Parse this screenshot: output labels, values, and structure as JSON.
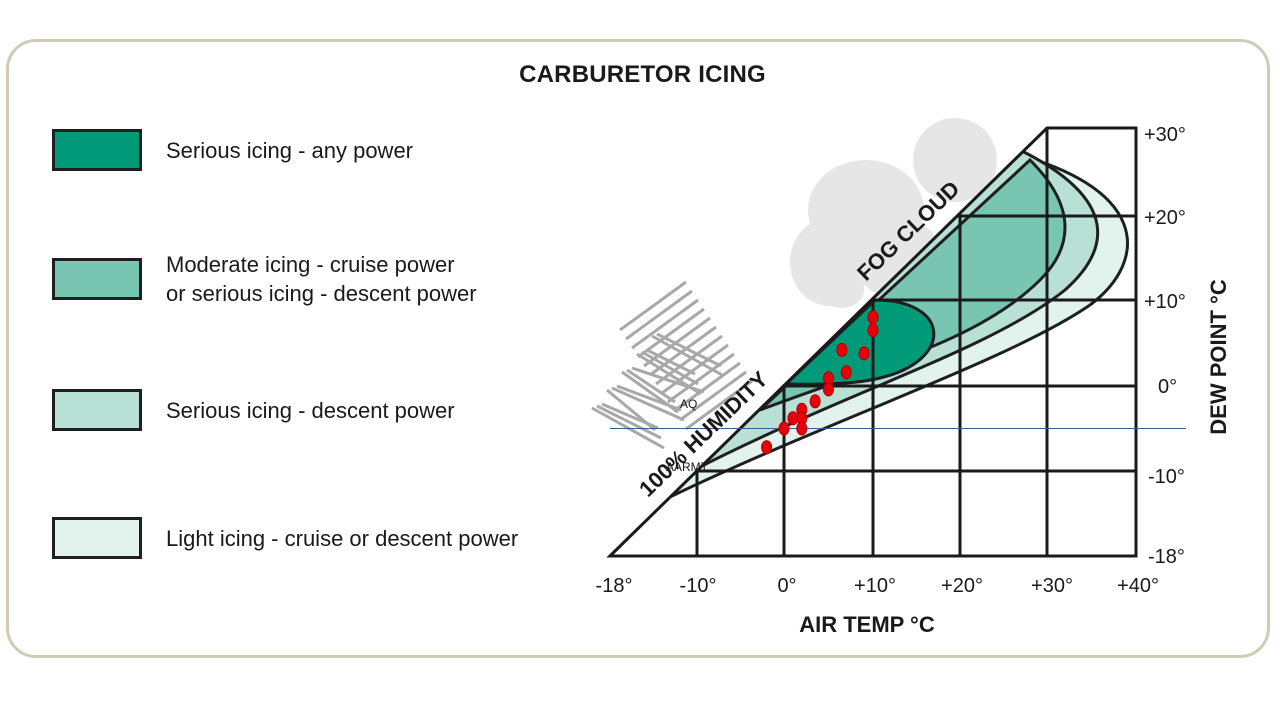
{
  "title": "CARBURETOR ICING",
  "legend": [
    {
      "id": "serious-any",
      "lines": [
        "Serious icing - any power"
      ],
      "color": "#009a79"
    },
    {
      "id": "moderate",
      "lines": [
        "Moderate icing - cruise power",
        "or serious icing - descent power"
      ],
      "color": "#78c5b2"
    },
    {
      "id": "serious-descent",
      "lines": [
        "Serious icing - descent power"
      ],
      "color": "#b9e0d5"
    },
    {
      "id": "light",
      "lines": [
        "Light icing - cruise or descent power"
      ],
      "color": "#e2f3ee"
    }
  ],
  "chart_data": {
    "type": "scatter",
    "xlabel": "AIR TEMP °C",
    "ylabel": "DEW POINT °C",
    "x_ticks": [
      "-18°",
      "-10°",
      "0°",
      "+10°",
      "+20°",
      "+30°",
      "+40°"
    ],
    "y_ticks": [
      "+30°",
      "+20°",
      "+10°",
      "0°",
      "-10°",
      "-18°"
    ],
    "xlim": [
      -18,
      40
    ],
    "ylim": [
      -18,
      30
    ],
    "diagonal_label": "100% HUMIDITY",
    "cloud_label": "FOG CLOUD",
    "annotations": [
      "AQ",
      "AARMT"
    ],
    "reference_line_dew_point": -5,
    "points": [
      {
        "x": 10,
        "y": 8
      },
      {
        "x": 10,
        "y": 6.5
      },
      {
        "x": 6.5,
        "y": 4.2
      },
      {
        "x": 9,
        "y": 3.8
      },
      {
        "x": 7,
        "y": 1.6
      },
      {
        "x": 5,
        "y": 0.9
      },
      {
        "x": 5,
        "y": -0.4
      },
      {
        "x": 3.5,
        "y": -1.8
      },
      {
        "x": 2,
        "y": -2.8
      },
      {
        "x": 1,
        "y": -3.8
      },
      {
        "x": 2,
        "y": -3.8
      },
      {
        "x": 0,
        "y": -5
      },
      {
        "x": 2,
        "y": -5
      },
      {
        "x": -2,
        "y": -7.2
      }
    ]
  }
}
